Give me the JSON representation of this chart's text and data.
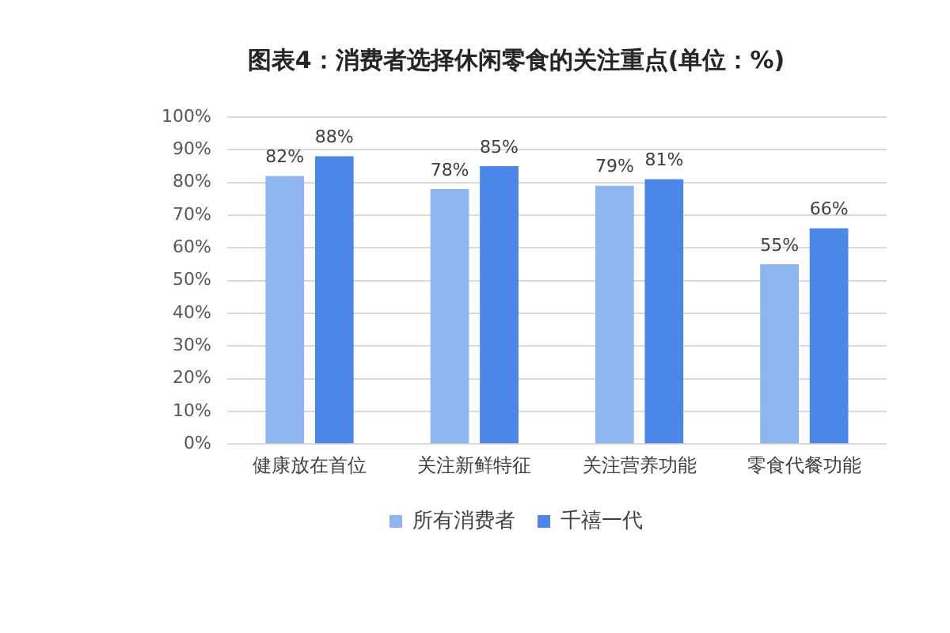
{
  "chart_data": {
    "type": "bar",
    "title": "图表4：消费者选择休闲零食的关注重点(单位：%)",
    "categories": [
      "健康放在首位",
      "关注新鲜特征",
      "关注营养功能",
      "零食代餐功能"
    ],
    "series": [
      {
        "name": "所有消费者",
        "color": "#8eb5ef",
        "values": [
          82,
          78,
          79,
          55
        ],
        "value_labels": [
          "82%",
          "78%",
          "79%",
          "55%"
        ]
      },
      {
        "name": "千禧一代",
        "color": "#4a87e8",
        "values": [
          88,
          85,
          81,
          66
        ],
        "value_labels": [
          "88%",
          "85%",
          "81%",
          "66%"
        ]
      }
    ],
    "ylim": [
      0,
      100
    ],
    "yticks": [
      {
        "value": 0,
        "label": "0%"
      },
      {
        "value": 10,
        "label": "10%"
      },
      {
        "value": 20,
        "label": "20%"
      },
      {
        "value": 30,
        "label": "30%"
      },
      {
        "value": 40,
        "label": "40%"
      },
      {
        "value": 50,
        "label": "50%"
      },
      {
        "value": 60,
        "label": "60%"
      },
      {
        "value": 70,
        "label": "70%"
      },
      {
        "value": 80,
        "label": "80%"
      },
      {
        "value": 90,
        "label": "90%"
      },
      {
        "value": 100,
        "label": "100%"
      }
    ],
    "grid": "y",
    "legend": "bottom"
  }
}
